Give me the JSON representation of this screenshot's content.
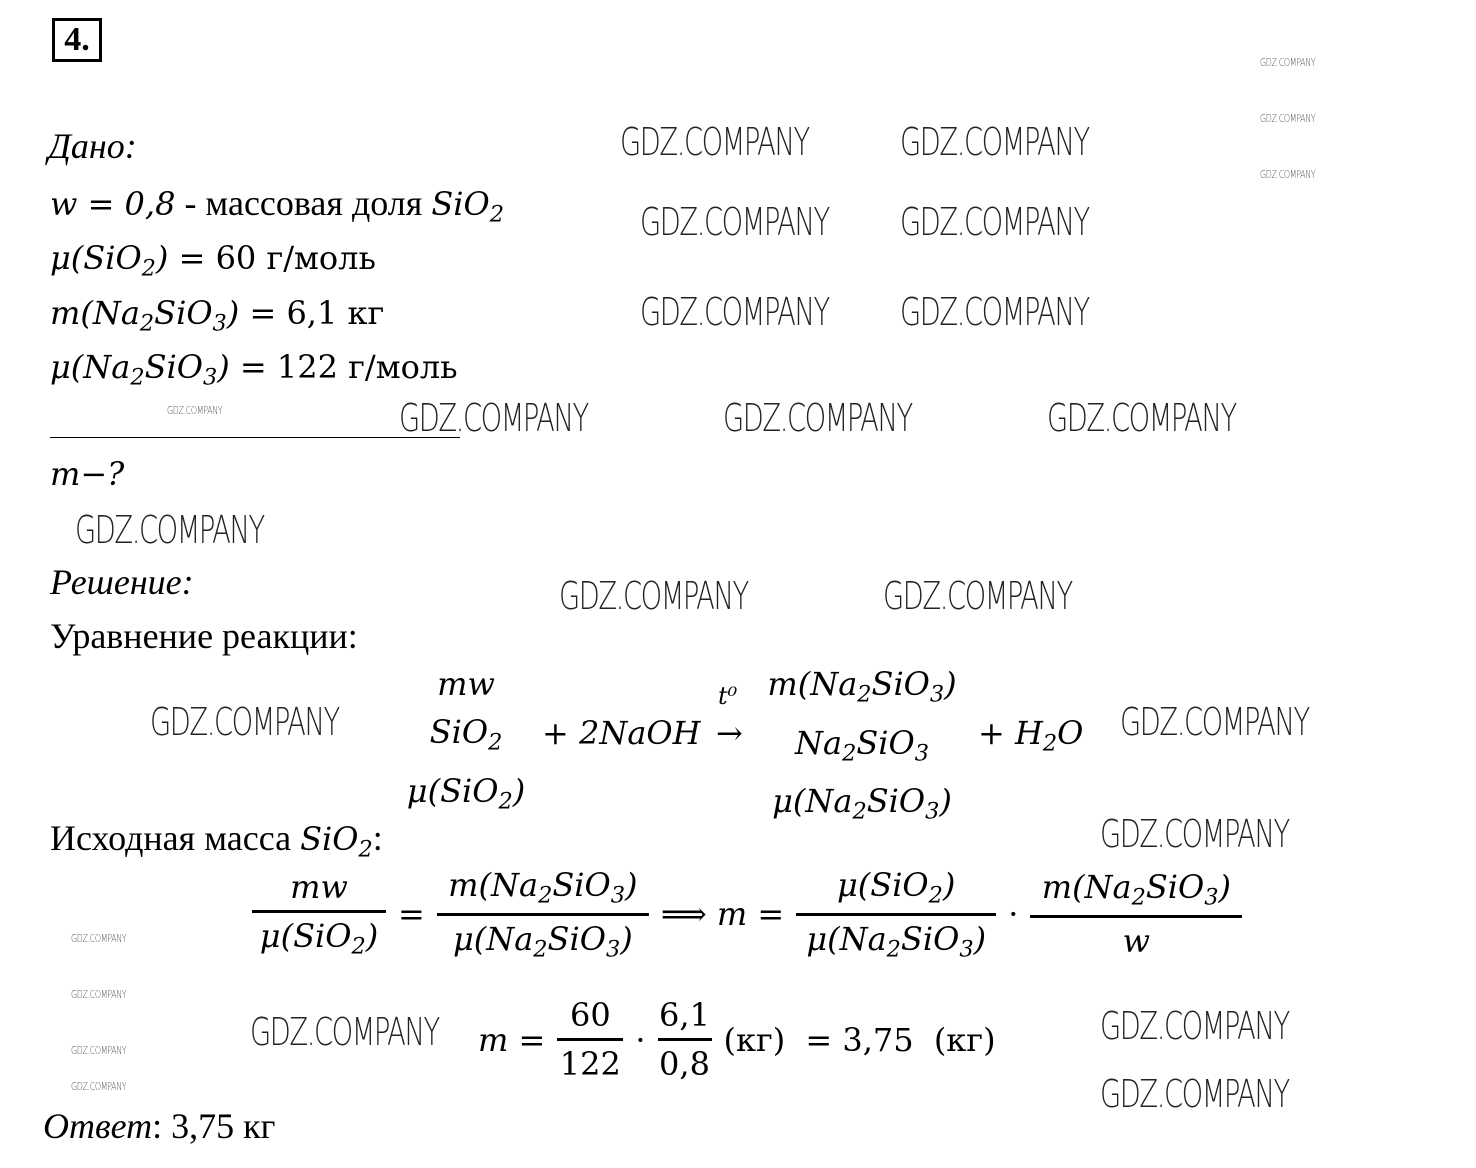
{
  "problem_number": "4.",
  "given": {
    "label": "Дано:",
    "lines": [
      {
        "formula": "w = 0,8",
        "text": " - массовая доля ",
        "tail": "SiO_2"
      },
      {
        "formula": "μ(SiO_2) = ",
        "value": "60 г/моль"
      },
      {
        "formula": "m(Na_2SiO_3) = ",
        "value": "6,1 кг"
      },
      {
        "formula": "μ(Na_2SiO_3) = ",
        "value": "122 г/моль"
      }
    ],
    "find": "m−?"
  },
  "solution": {
    "label": "Решение:",
    "reaction_heading": "Уравнение реакции:",
    "reaction": {
      "reactant1": {
        "above": "mw",
        "formula": "SiO_2",
        "below": "μ(SiO_2)"
      },
      "reactant2": "+ 2NaOH",
      "arrow": "→",
      "condition": "t⁰",
      "product1": {
        "above": "m(Na_2SiO_3)",
        "formula": "Na_2SiO_3",
        "below": "μ(Na_2SiO_3)"
      },
      "product2": "+ H_2O"
    },
    "mass_heading": "Исходная масса ",
    "mass_heading_formula": "SiO_2",
    "mass_heading_colon": ":",
    "proportion": {
      "f1_num": "mw",
      "f1_den": "μ(SiO_2)",
      "eq": "=",
      "f2_num": "m(Na_2SiO_3)",
      "f2_den": "μ(Na_2SiO_3)",
      "implies": "⟹ m =",
      "f3_num": "μ(SiO_2)",
      "f3_den": "μ(Na_2SiO_3)",
      "dot": "·",
      "f4_num": "m(Na_2SiO_3)",
      "f4_den": "w"
    },
    "calculation": {
      "lhs": "m =",
      "f1_num": "60",
      "f1_den": "122",
      "dot": "·",
      "f2_num": "6,1",
      "f2_den": "0,8",
      "unit1": "(кг)",
      "eq": " = 3,75 ",
      "unit2": "(кг)"
    },
    "answer_label": "Ответ",
    "answer_value": ": 3,75 кг"
  },
  "watermark": "GDZ.COMPANY"
}
